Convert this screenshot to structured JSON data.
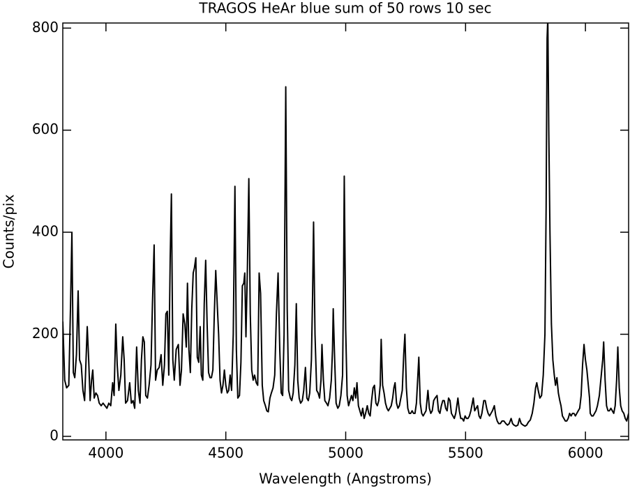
{
  "chart_data": {
    "type": "line",
    "title": "TRAGOS HeAr blue sum of 50 rows 10 sec",
    "x_label": "Wavelength (Angstroms)",
    "y_label": "Counts/pix",
    "color": "#000000",
    "xlim": [
      3820,
      6180
    ],
    "ylim": [
      -7,
      810
    ],
    "xticks": [
      4000,
      4500,
      5000,
      5500,
      6000
    ],
    "yticks": [
      0,
      200,
      400,
      600,
      800
    ],
    "x": [
      3820,
      3828,
      3836,
      3845,
      3852,
      3858,
      3864,
      3870,
      3877,
      3884,
      3890,
      3897,
      3904,
      3911,
      3917,
      3922,
      3928,
      3934,
      3940,
      3945,
      3951,
      3958,
      3965,
      3972,
      3980,
      3988,
      3996,
      4004,
      4012,
      4020,
      4028,
      4034,
      4041,
      4047,
      4054,
      4062,
      4070,
      4076,
      4082,
      4090,
      4099,
      4106,
      4113,
      4120,
      4128,
      4135,
      4142,
      4148,
      4154,
      4160,
      4166,
      4173,
      4180,
      4188,
      4194,
      4201,
      4207,
      4214,
      4222,
      4230,
      4237,
      4244,
      4250,
      4256,
      4262,
      4268,
      4273,
      4279,
      4285,
      4293,
      4302,
      4309,
      4315,
      4322,
      4329,
      4335,
      4340,
      4346,
      4352,
      4358,
      4364,
      4369,
      4375,
      4381,
      4387,
      4393,
      4398,
      4404,
      4410,
      4416,
      4422,
      4428,
      4434,
      4440,
      4446,
      4452,
      4458,
      4465,
      4470,
      4476,
      4482,
      4488,
      4494,
      4500,
      4506,
      4512,
      4518,
      4524,
      4531,
      4538,
      4544,
      4550,
      4557,
      4563,
      4569,
      4575,
      4579,
      4584,
      4590,
      4596,
      4602,
      4608,
      4614,
      4620,
      4627,
      4633,
      4639,
      4645,
      4652,
      4658,
      4665,
      4671,
      4677,
      4684,
      4690,
      4697,
      4704,
      4711,
      4718,
      4725,
      4731,
      4737,
      4743,
      4750,
      4756,
      4762,
      4769,
      4775,
      4781,
      4788,
      4794,
      4800,
      4806,
      4812,
      4819,
      4825,
      4832,
      4838,
      4844,
      4850,
      4857,
      4862,
      4866,
      4872,
      4879,
      4885,
      4891,
      4897,
      4901,
      4907,
      4913,
      4920,
      4926,
      4933,
      4940,
      4945,
      4948,
      4954,
      4960,
      4967,
      4973,
      4980,
      4987,
      4991,
      4994,
      5000,
      5006,
      5012,
      5018,
      5024,
      5030,
      5036,
      5042,
      5047,
      5053,
      5059,
      5065,
      5071,
      5077,
      5083,
      5090,
      5096,
      5102,
      5108,
      5114,
      5120,
      5126,
      5132,
      5138,
      5144,
      5148,
      5154,
      5160,
      5166,
      5172,
      5178,
      5184,
      5190,
      5196,
      5201,
      5206,
      5212,
      5218,
      5224,
      5230,
      5236,
      5242,
      5247,
      5253,
      5259,
      5265,
      5271,
      5277,
      5283,
      5289,
      5295,
      5300,
      5305,
      5311,
      5317,
      5323,
      5329,
      5335,
      5343,
      5349,
      5355,
      5361,
      5367,
      5373,
      5381,
      5387,
      5393,
      5399,
      5405,
      5411,
      5417,
      5423,
      5429,
      5435,
      5441,
      5447,
      5453,
      5459,
      5468,
      5474,
      5480,
      5486,
      5492,
      5498,
      5504,
      5510,
      5516,
      5522,
      5532,
      5538,
      5544,
      5550,
      5556,
      5562,
      5568,
      5576,
      5582,
      5588,
      5594,
      5600,
      5606,
      5612,
      5620,
      5626,
      5632,
      5638,
      5645,
      5652,
      5660,
      5668,
      5675,
      5682,
      5690,
      5696,
      5702,
      5710,
      5718,
      5725,
      5732,
      5740,
      5748,
      5755,
      5762,
      5770,
      5778,
      5785,
      5792,
      5797,
      5803,
      5810,
      5817,
      5824,
      5831,
      5836,
      5840,
      5843,
      5847,
      5852,
      5858,
      5864,
      5870,
      5875,
      5881,
      5887,
      5893,
      5898,
      5904,
      5910,
      5916,
      5922,
      5928,
      5934,
      5940,
      5946,
      5952,
      5958,
      5964,
      5970,
      5976,
      5982,
      5988,
      5994,
      6000,
      6006,
      6012,
      6017,
      6020,
      6026,
      6032,
      6038,
      6044,
      6050,
      6058,
      6066,
      6072,
      6076,
      6082,
      6088,
      6094,
      6100,
      6106,
      6112,
      6118,
      6124,
      6130,
      6135,
      6141,
      6147,
      6153,
      6160,
      6166,
      6172,
      6180
    ],
    "values": [
      225,
      110,
      95,
      100,
      250,
      400,
      125,
      115,
      160,
      285,
      150,
      140,
      90,
      70,
      150,
      215,
      150,
      70,
      110,
      130,
      75,
      85,
      80,
      65,
      60,
      65,
      60,
      55,
      65,
      60,
      105,
      80,
      220,
      140,
      90,
      120,
      195,
      150,
      65,
      70,
      105,
      65,
      70,
      55,
      175,
      90,
      65,
      150,
      195,
      185,
      80,
      75,
      100,
      140,
      260,
      375,
      110,
      130,
      135,
      160,
      100,
      140,
      240,
      245,
      120,
      350,
      475,
      150,
      110,
      170,
      180,
      100,
      130,
      240,
      220,
      175,
      300,
      170,
      125,
      250,
      320,
      330,
      350,
      155,
      145,
      215,
      120,
      110,
      260,
      345,
      220,
      125,
      115,
      115,
      130,
      240,
      325,
      250,
      200,
      110,
      85,
      100,
      130,
      100,
      85,
      90,
      120,
      90,
      200,
      490,
      170,
      75,
      80,
      145,
      295,
      300,
      320,
      195,
      330,
      505,
      240,
      130,
      110,
      120,
      105,
      100,
      320,
      280,
      100,
      70,
      60,
      50,
      48,
      75,
      85,
      95,
      120,
      240,
      320,
      170,
      85,
      80,
      200,
      685,
      250,
      90,
      75,
      70,
      85,
      140,
      260,
      110,
      75,
      65,
      70,
      90,
      135,
      75,
      70,
      85,
      150,
      280,
      420,
      200,
      90,
      85,
      75,
      110,
      180,
      110,
      70,
      65,
      60,
      75,
      110,
      170,
      250,
      150,
      65,
      55,
      60,
      80,
      120,
      300,
      510,
      210,
      80,
      60,
      70,
      80,
      70,
      95,
      75,
      105,
      60,
      50,
      40,
      55,
      35,
      45,
      60,
      45,
      40,
      70,
      95,
      100,
      65,
      60,
      70,
      100,
      190,
      100,
      85,
      65,
      55,
      50,
      55,
      60,
      75,
      95,
      105,
      65,
      55,
      60,
      75,
      90,
      160,
      200,
      95,
      55,
      45,
      45,
      50,
      45,
      45,
      65,
      110,
      155,
      65,
      45,
      40,
      45,
      50,
      90,
      55,
      45,
      50,
      70,
      75,
      80,
      50,
      45,
      60,
      70,
      70,
      55,
      50,
      75,
      70,
      45,
      40,
      35,
      45,
      75,
      50,
      35,
      35,
      30,
      40,
      35,
      35,
      40,
      50,
      75,
      50,
      55,
      60,
      40,
      35,
      45,
      70,
      70,
      55,
      45,
      40,
      45,
      50,
      60,
      40,
      30,
      25,
      25,
      30,
      30,
      25,
      22,
      25,
      35,
      25,
      22,
      20,
      22,
      35,
      25,
      22,
      20,
      22,
      28,
      32,
      45,
      65,
      95,
      105,
      90,
      75,
      80,
      120,
      200,
      450,
      780,
      820,
      600,
      400,
      220,
      150,
      120,
      100,
      115,
      85,
      70,
      60,
      40,
      35,
      30,
      30,
      35,
      45,
      40,
      45,
      45,
      40,
      45,
      50,
      55,
      80,
      140,
      180,
      150,
      130,
      100,
      75,
      45,
      40,
      40,
      45,
      50,
      60,
      80,
      120,
      150,
      185,
      110,
      60,
      50,
      50,
      55,
      50,
      45,
      60,
      110,
      175,
      95,
      60,
      50,
      45,
      35,
      30,
      45
    ]
  }
}
